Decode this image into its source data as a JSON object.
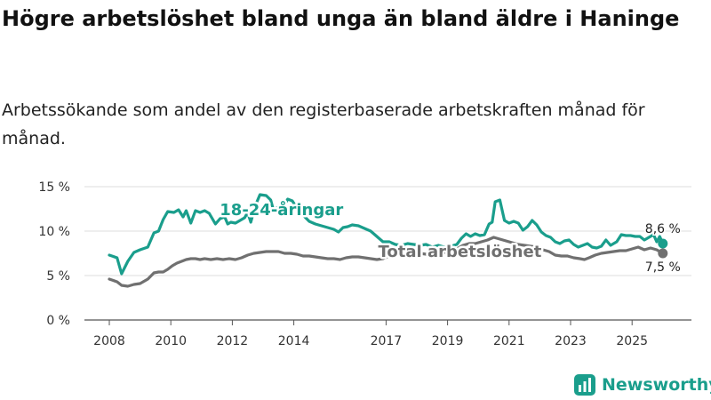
{
  "title": "Högre arbetslöshet bland unga än bland äldre i Haninge",
  "subtitle": "Arbetssökande som andel av den registerbaserade arbetskraften månad för månad.",
  "brand": "Newsworthy",
  "colors": {
    "youth": "#1a9e8c",
    "total": "#707070",
    "grid": "#dddddd",
    "brand": "#1a9e8c"
  },
  "chart_data": {
    "type": "line",
    "title": "Arbetssökande som andel av den registerbaserade arbetskraften",
    "xlabel": "",
    "ylabel": "",
    "xlim": [
      2008,
      2026.3
    ],
    "ylim": [
      0,
      15
    ],
    "y_ticks": [
      0,
      5,
      10,
      15
    ],
    "y_tick_labels": [
      "0 %",
      "5 %",
      "10 %",
      "15 %"
    ],
    "x_ticks": [
      2008,
      2010,
      2012,
      2014,
      2017,
      2019,
      2021,
      2023,
      2025
    ],
    "x_tick_labels": [
      "2008",
      "2010",
      "2012",
      "2014",
      "2017",
      "2019",
      "2021",
      "2023",
      "2025"
    ],
    "series": [
      {
        "name": "18-24-åringar",
        "label": "18-24-åringar",
        "end_label": "8,6 %",
        "points": [
          [
            2008.0,
            7.3
          ],
          [
            2008.25,
            7.0
          ],
          [
            2008.4,
            5.2
          ],
          [
            2008.6,
            6.6
          ],
          [
            2008.8,
            7.6
          ],
          [
            2009.0,
            7.9
          ],
          [
            2009.25,
            8.2
          ],
          [
            2009.45,
            9.8
          ],
          [
            2009.6,
            10.0
          ],
          [
            2009.75,
            11.3
          ],
          [
            2009.9,
            12.2
          ],
          [
            2010.1,
            12.1
          ],
          [
            2010.25,
            12.4
          ],
          [
            2010.4,
            11.6
          ],
          [
            2010.5,
            12.3
          ],
          [
            2010.65,
            10.9
          ],
          [
            2010.8,
            12.3
          ],
          [
            2010.95,
            12.1
          ],
          [
            2011.1,
            12.3
          ],
          [
            2011.25,
            12.0
          ],
          [
            2011.45,
            10.8
          ],
          [
            2011.6,
            11.4
          ],
          [
            2011.75,
            11.6
          ],
          [
            2011.85,
            10.8
          ],
          [
            2011.95,
            11.0
          ],
          [
            2012.1,
            10.9
          ],
          [
            2012.25,
            11.2
          ],
          [
            2012.4,
            11.5
          ],
          [
            2012.5,
            12.1
          ],
          [
            2012.6,
            11.0
          ],
          [
            2012.75,
            12.9
          ],
          [
            2012.9,
            14.1
          ],
          [
            2013.1,
            14.0
          ],
          [
            2013.25,
            13.5
          ],
          [
            2013.35,
            12.2
          ],
          [
            2013.5,
            12.8
          ],
          [
            2013.65,
            12.6
          ],
          [
            2013.8,
            13.6
          ],
          [
            2013.95,
            13.4
          ],
          [
            2014.1,
            12.6
          ],
          [
            2014.3,
            11.8
          ],
          [
            2014.5,
            11.1
          ],
          [
            2014.7,
            10.8
          ],
          [
            2014.9,
            10.6
          ],
          [
            2015.1,
            10.4
          ],
          [
            2015.3,
            10.2
          ],
          [
            2015.45,
            9.9
          ],
          [
            2015.6,
            10.4
          ],
          [
            2015.75,
            10.5
          ],
          [
            2015.9,
            10.7
          ],
          [
            2016.1,
            10.6
          ],
          [
            2016.3,
            10.3
          ],
          [
            2016.5,
            10.0
          ],
          [
            2016.7,
            9.4
          ],
          [
            2016.9,
            8.8
          ],
          [
            2017.1,
            8.8
          ],
          [
            2017.3,
            8.5
          ],
          [
            2017.5,
            8.4
          ],
          [
            2017.7,
            8.6
          ],
          [
            2017.9,
            8.5
          ],
          [
            2018.1,
            8.4
          ],
          [
            2018.3,
            8.5
          ],
          [
            2018.5,
            8.2
          ],
          [
            2018.7,
            8.4
          ],
          [
            2018.9,
            8.2
          ],
          [
            2019.1,
            8.3
          ],
          [
            2019.3,
            8.5
          ],
          [
            2019.45,
            9.2
          ],
          [
            2019.6,
            9.7
          ],
          [
            2019.75,
            9.4
          ],
          [
            2019.9,
            9.7
          ],
          [
            2020.05,
            9.5
          ],
          [
            2020.2,
            9.6
          ],
          [
            2020.35,
            10.8
          ],
          [
            2020.45,
            11.0
          ],
          [
            2020.55,
            13.3
          ],
          [
            2020.7,
            13.5
          ],
          [
            2020.85,
            11.2
          ],
          [
            2021.0,
            10.9
          ],
          [
            2021.15,
            11.1
          ],
          [
            2021.3,
            10.9
          ],
          [
            2021.45,
            10.1
          ],
          [
            2021.6,
            10.5
          ],
          [
            2021.75,
            11.2
          ],
          [
            2021.9,
            10.7
          ],
          [
            2022.05,
            9.9
          ],
          [
            2022.2,
            9.5
          ],
          [
            2022.35,
            9.3
          ],
          [
            2022.5,
            8.8
          ],
          [
            2022.65,
            8.6
          ],
          [
            2022.8,
            8.9
          ],
          [
            2022.95,
            9.0
          ],
          [
            2023.1,
            8.5
          ],
          [
            2023.25,
            8.2
          ],
          [
            2023.4,
            8.4
          ],
          [
            2023.55,
            8.6
          ],
          [
            2023.7,
            8.2
          ],
          [
            2023.85,
            8.1
          ],
          [
            2024.0,
            8.3
          ],
          [
            2024.15,
            9.0
          ],
          [
            2024.3,
            8.4
          ],
          [
            2024.5,
            8.8
          ],
          [
            2024.65,
            9.6
          ],
          [
            2024.8,
            9.5
          ],
          [
            2024.95,
            9.5
          ],
          [
            2025.1,
            9.4
          ],
          [
            2025.25,
            9.4
          ],
          [
            2025.4,
            9.0
          ],
          [
            2025.55,
            9.3
          ],
          [
            2025.7,
            9.6
          ],
          [
            2025.8,
            8.8
          ],
          [
            2025.9,
            9.4
          ],
          [
            2026.0,
            8.6
          ]
        ]
      },
      {
        "name": "Total arbetslöshet",
        "label": "Total arbetslöshet",
        "end_label": "7,5 %",
        "points": [
          [
            2008.0,
            4.6
          ],
          [
            2008.25,
            4.3
          ],
          [
            2008.4,
            3.9
          ],
          [
            2008.6,
            3.8
          ],
          [
            2008.8,
            4.0
          ],
          [
            2009.0,
            4.1
          ],
          [
            2009.25,
            4.6
          ],
          [
            2009.45,
            5.3
          ],
          [
            2009.6,
            5.4
          ],
          [
            2009.75,
            5.4
          ],
          [
            2009.9,
            5.7
          ],
          [
            2010.05,
            6.1
          ],
          [
            2010.2,
            6.4
          ],
          [
            2010.35,
            6.6
          ],
          [
            2010.5,
            6.8
          ],
          [
            2010.65,
            6.9
          ],
          [
            2010.8,
            6.9
          ],
          [
            2010.95,
            6.8
          ],
          [
            2011.1,
            6.9
          ],
          [
            2011.3,
            6.8
          ],
          [
            2011.5,
            6.9
          ],
          [
            2011.7,
            6.8
          ],
          [
            2011.9,
            6.9
          ],
          [
            2012.1,
            6.8
          ],
          [
            2012.3,
            7.0
          ],
          [
            2012.5,
            7.3
          ],
          [
            2012.7,
            7.5
          ],
          [
            2012.9,
            7.6
          ],
          [
            2013.1,
            7.7
          ],
          [
            2013.3,
            7.7
          ],
          [
            2013.5,
            7.7
          ],
          [
            2013.7,
            7.5
          ],
          [
            2013.9,
            7.5
          ],
          [
            2014.1,
            7.4
          ],
          [
            2014.3,
            7.2
          ],
          [
            2014.5,
            7.2
          ],
          [
            2014.7,
            7.1
          ],
          [
            2014.9,
            7.0
          ],
          [
            2015.1,
            6.9
          ],
          [
            2015.3,
            6.9
          ],
          [
            2015.5,
            6.8
          ],
          [
            2015.7,
            7.0
          ],
          [
            2015.9,
            7.1
          ],
          [
            2016.1,
            7.1
          ],
          [
            2016.3,
            7.0
          ],
          [
            2016.5,
            6.9
          ],
          [
            2016.7,
            6.8
          ],
          [
            2016.9,
            6.9
          ],
          [
            2017.1,
            7.2
          ],
          [
            2017.3,
            7.3
          ],
          [
            2017.5,
            7.5
          ],
          [
            2017.7,
            7.6
          ],
          [
            2017.9,
            7.6
          ],
          [
            2018.1,
            7.5
          ],
          [
            2018.3,
            7.4
          ],
          [
            2018.5,
            7.5
          ],
          [
            2018.7,
            7.6
          ],
          [
            2018.9,
            7.6
          ],
          [
            2019.1,
            7.8
          ],
          [
            2019.3,
            8.0
          ],
          [
            2019.5,
            8.4
          ],
          [
            2019.7,
            8.6
          ],
          [
            2019.9,
            8.6
          ],
          [
            2020.1,
            8.8
          ],
          [
            2020.3,
            9.0
          ],
          [
            2020.5,
            9.3
          ],
          [
            2020.7,
            9.1
          ],
          [
            2020.9,
            8.9
          ],
          [
            2021.1,
            8.7
          ],
          [
            2021.3,
            8.5
          ],
          [
            2021.5,
            8.4
          ],
          [
            2021.7,
            8.3
          ],
          [
            2021.9,
            8.2
          ],
          [
            2022.1,
            7.9
          ],
          [
            2022.3,
            7.7
          ],
          [
            2022.5,
            7.3
          ],
          [
            2022.7,
            7.2
          ],
          [
            2022.9,
            7.2
          ],
          [
            2023.1,
            7.0
          ],
          [
            2023.3,
            6.9
          ],
          [
            2023.45,
            6.8
          ],
          [
            2023.6,
            7.0
          ],
          [
            2023.8,
            7.3
          ],
          [
            2024.0,
            7.5
          ],
          [
            2024.2,
            7.6
          ],
          [
            2024.4,
            7.7
          ],
          [
            2024.6,
            7.8
          ],
          [
            2024.8,
            7.8
          ],
          [
            2025.0,
            8.0
          ],
          [
            2025.2,
            8.2
          ],
          [
            2025.4,
            7.9
          ],
          [
            2025.6,
            8.1
          ],
          [
            2025.8,
            7.9
          ],
          [
            2026.0,
            7.5
          ]
        ]
      }
    ]
  }
}
